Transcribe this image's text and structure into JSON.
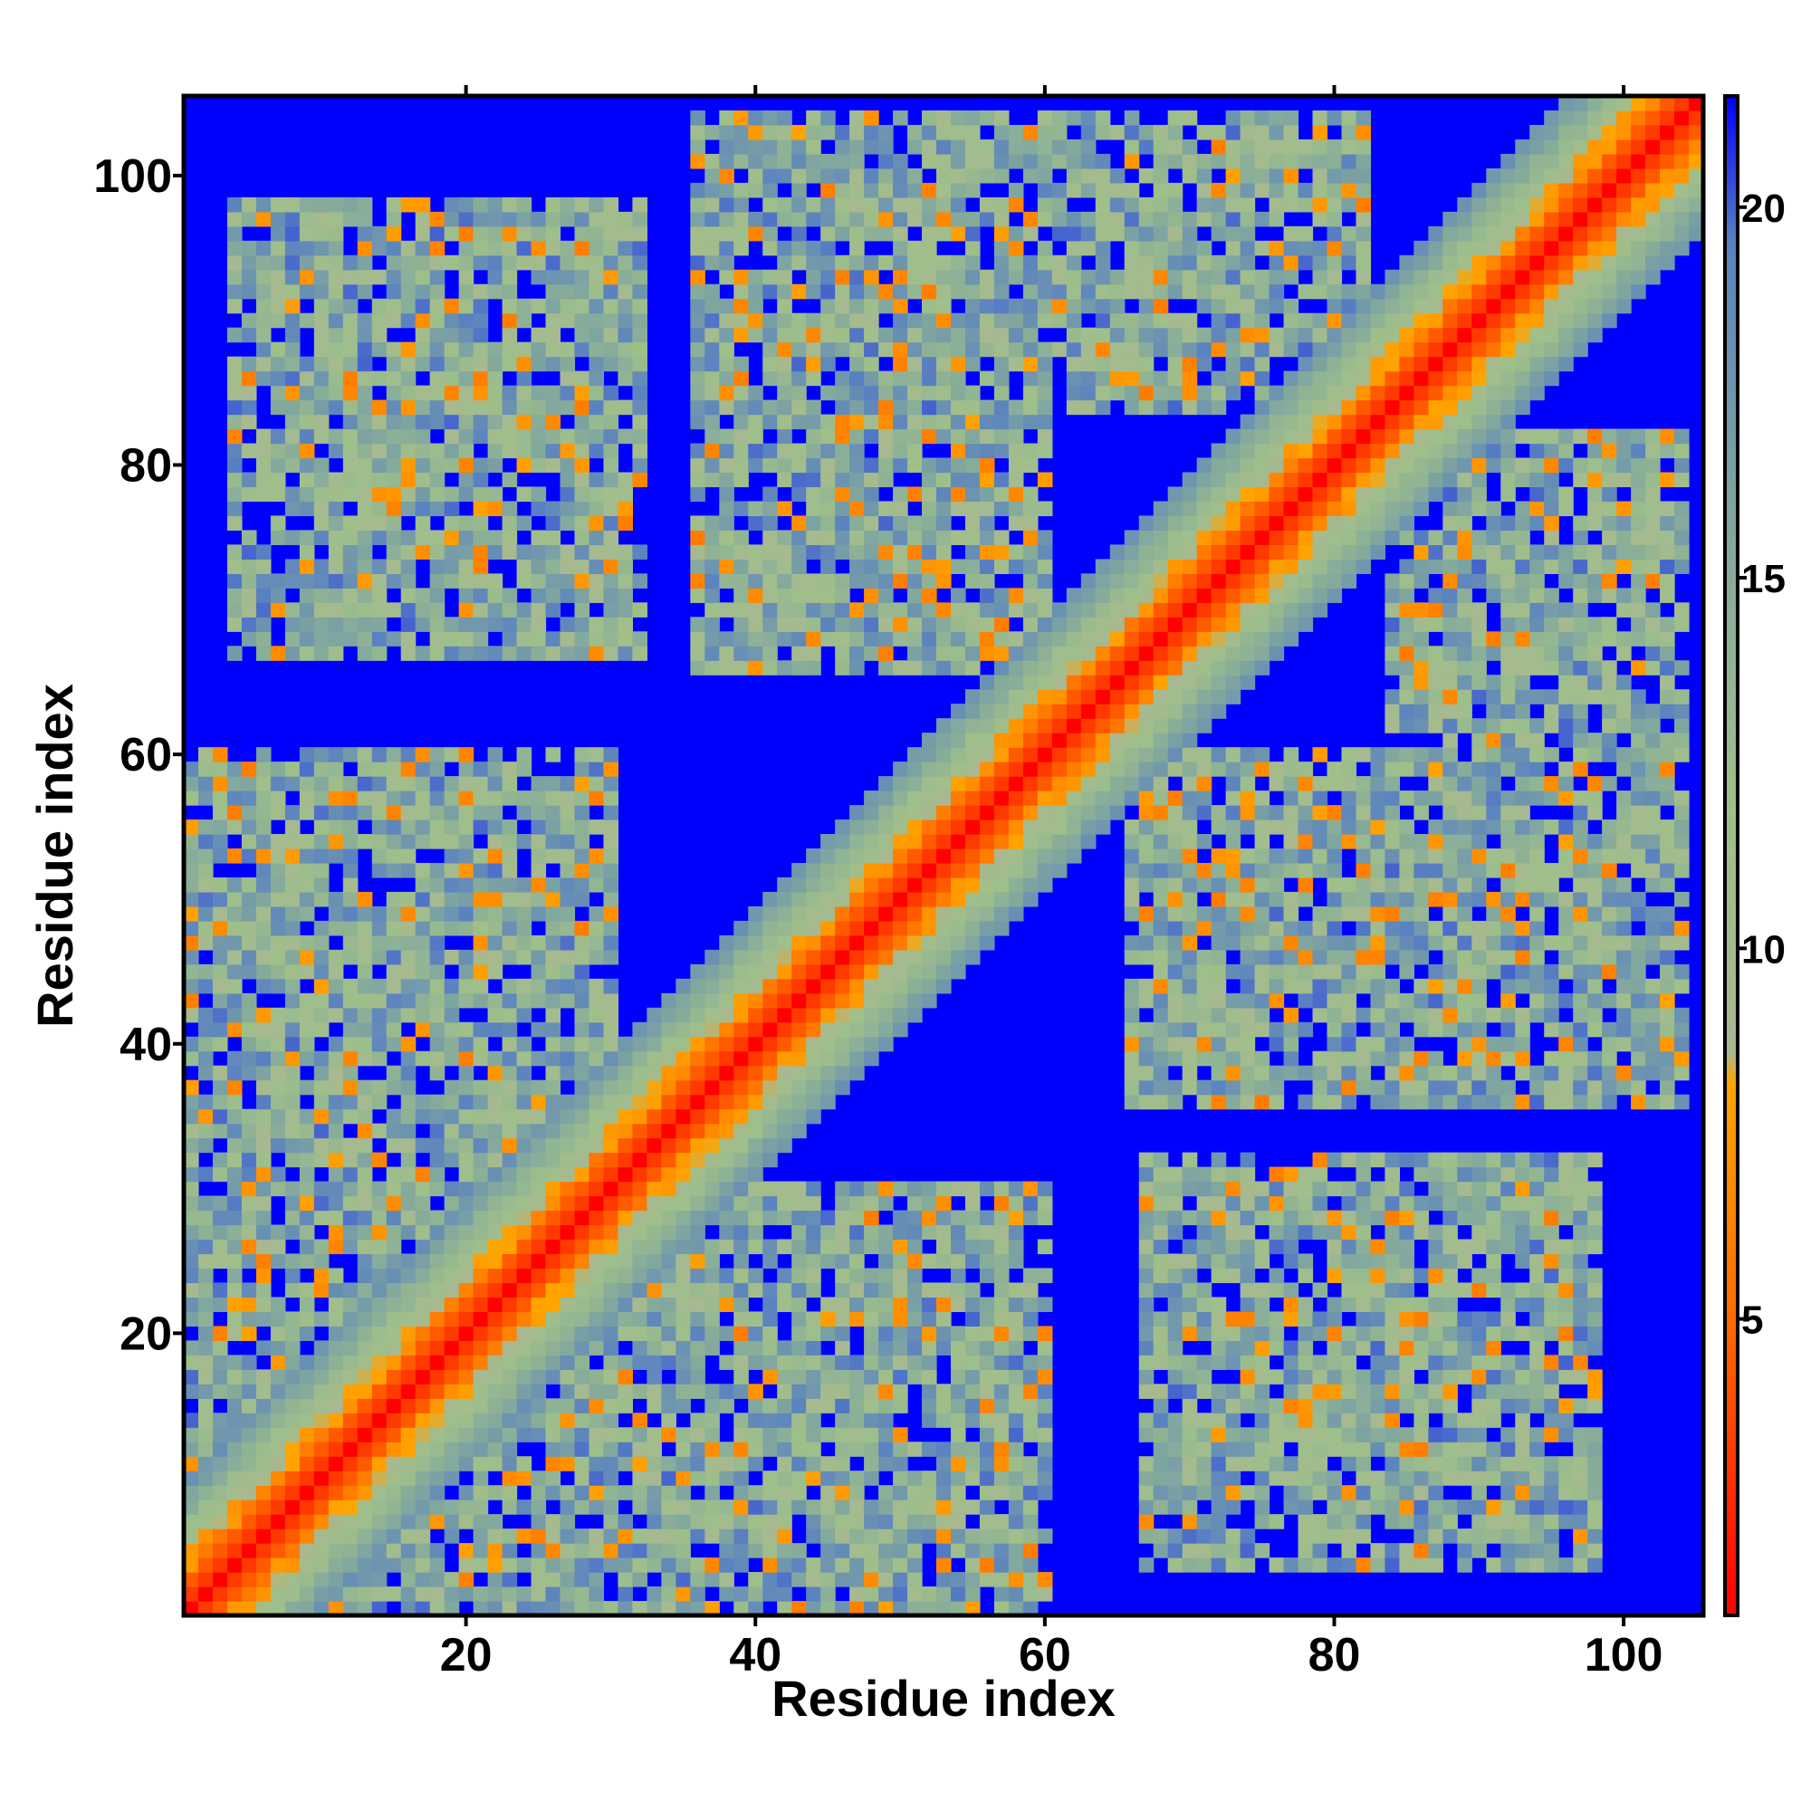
{
  "chart_data": {
    "type": "heatmap",
    "title": "",
    "xlabel": "Residue index",
    "ylabel": "Residue index",
    "xlim": [
      1,
      105
    ],
    "ylim": [
      1,
      105
    ],
    "x_ticks": [
      20,
      40,
      60,
      80,
      100
    ],
    "y_ticks": [
      20,
      40,
      60,
      80,
      100
    ],
    "n_residues": 105,
    "colorbar": {
      "ticks": [
        5,
        10,
        15,
        20
      ],
      "range": [
        1,
        21.5
      ],
      "stops": [
        {
          "value": 1,
          "color": "#ff0000"
        },
        {
          "value": 5,
          "color": "#ff6a00"
        },
        {
          "value": 8.2,
          "color": "#ffa500"
        },
        {
          "value": 8.6,
          "color": "#a8b890"
        },
        {
          "value": 12,
          "color": "#9fbf8a"
        },
        {
          "value": 16,
          "color": "#7fa5a0"
        },
        {
          "value": 19.5,
          "color": "#5a82c0"
        },
        {
          "value": 21.5,
          "color": "#0000ff"
        }
      ],
      "saturate_color": "#0000ff"
    },
    "structure": {
      "description_free": true,
      "diagonal_band_width": 9,
      "contact_blocks": [
        {
          "x": [
            1,
            30
          ],
          "y": [
            1,
            60
          ]
        },
        {
          "x": [
            1,
            60
          ],
          "y": [
            1,
            30
          ]
        },
        {
          "x": [
            4,
            32
          ],
          "y": [
            67,
            98
          ]
        },
        {
          "x": [
            67,
            98
          ],
          "y": [
            4,
            32
          ]
        },
        {
          "x": [
            36,
            60
          ],
          "y": [
            66,
            104
          ]
        },
        {
          "x": [
            66,
            104
          ],
          "y": [
            36,
            60
          ]
        },
        {
          "x": [
            62,
            82
          ],
          "y": [
            84,
            104
          ]
        },
        {
          "x": [
            84,
            104
          ],
          "y": [
            62,
            82
          ]
        },
        {
          "x": [
            88,
            104
          ],
          "y": [
            44,
            70
          ]
        },
        {
          "x": [
            44,
            70
          ],
          "y": [
            88,
            104
          ]
        }
      ]
    }
  }
}
